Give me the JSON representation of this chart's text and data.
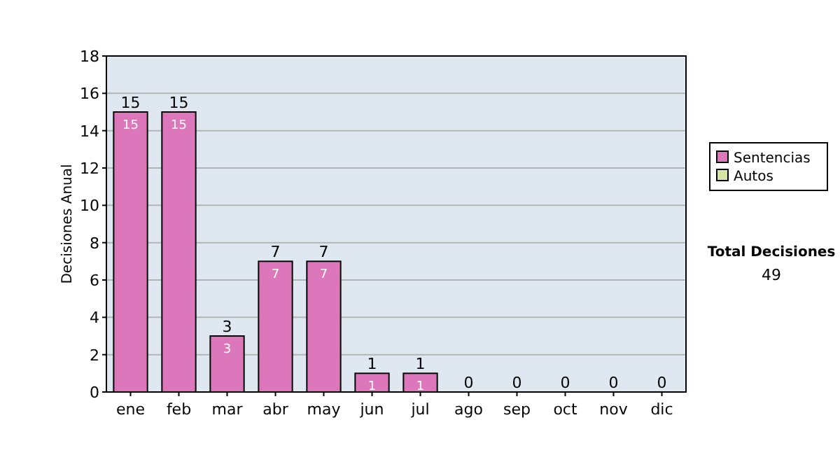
{
  "chart_data": {
    "type": "bar",
    "stacked": true,
    "ylabel": "Decisiones Anual",
    "categories": [
      "ene",
      "feb",
      "mar",
      "abr",
      "may",
      "jun",
      "jul",
      "ago",
      "sep",
      "oct",
      "nov",
      "dic"
    ],
    "series": [
      {
        "name": "Sentencias",
        "color": "#dd77bb",
        "values": [
          15,
          15,
          3,
          7,
          7,
          1,
          1,
          0,
          0,
          0,
          0,
          0
        ],
        "value_labels": [
          "15",
          "15",
          "3",
          "7",
          "7",
          "1",
          "1",
          null,
          null,
          null,
          null,
          null
        ]
      },
      {
        "name": "Autos",
        "color": "#d4e6a0",
        "values": [
          0,
          0,
          0,
          0,
          0,
          0,
          0,
          0,
          0,
          0,
          0,
          0
        ]
      }
    ],
    "totals": [
      "15",
      "15",
      "3",
      "7",
      "7",
      "1",
      "1",
      "0",
      "0",
      "0",
      "0",
      "0"
    ],
    "ylim": [
      0,
      18
    ],
    "yticks": [
      0,
      2,
      4,
      6,
      8,
      10,
      12,
      14,
      16,
      18
    ],
    "grid": "y",
    "legend": "right",
    "annotations": [
      "Total Decisiones",
      "49"
    ]
  }
}
